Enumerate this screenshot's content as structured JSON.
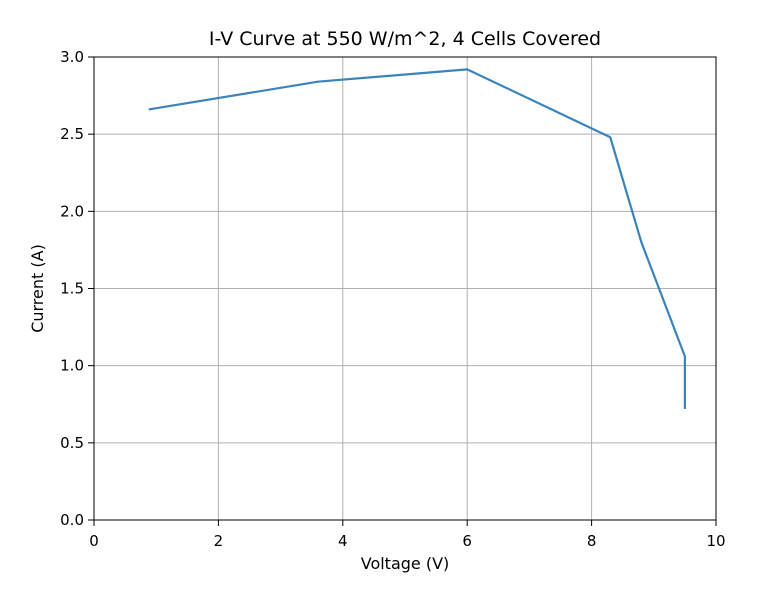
{
  "chart_data": {
    "type": "line",
    "title": "I-V Curve at 550 W/m^2, 4 Cells Covered",
    "xlabel": "Voltage (V)",
    "ylabel": "Current (A)",
    "xlim": [
      0,
      10
    ],
    "ylim": [
      0,
      3.0
    ],
    "x_ticks": [
      0,
      2,
      4,
      6,
      8,
      10
    ],
    "x_tick_labels": [
      "0",
      "2",
      "4",
      "6",
      "8",
      "10"
    ],
    "y_ticks": [
      0,
      0.5,
      1.0,
      1.5,
      2.0,
      2.5,
      3.0
    ],
    "y_tick_labels": [
      "0.0",
      "0.5",
      "1.0",
      "1.5",
      "2.0",
      "2.5",
      "3.0"
    ],
    "grid": true,
    "colors": {
      "series": "#3a84bb",
      "grid": "#b0b0b0",
      "axes": "#000000"
    },
    "series": [
      {
        "x": [
          0.88,
          3.6,
          6.0,
          8.3,
          8.8,
          9.5,
          9.5
        ],
        "y": [
          2.66,
          2.84,
          2.92,
          2.48,
          1.8,
          1.06,
          0.72
        ]
      }
    ]
  }
}
